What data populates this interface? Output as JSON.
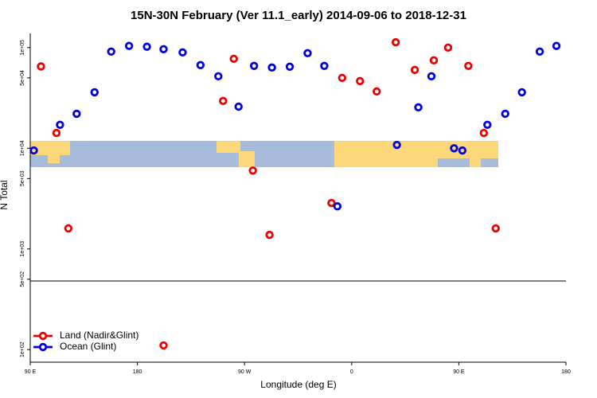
{
  "chart_data": {
    "type": "scatter",
    "title": "15N-30N February (Ver 11.1_early)   2014-09-06 to 2018-12-31",
    "xlabel": "Longitude (deg E)",
    "ylabel": "N Total",
    "xlim": [
      90,
      540
    ],
    "ylim": [
      75,
      160000
    ],
    "log_y": true,
    "legend": "lower left",
    "xticks": [
      {
        "value": 90,
        "label": "90 E"
      },
      {
        "value": 180,
        "label": "180"
      },
      {
        "value": 270,
        "label": "90 W"
      },
      {
        "value": 360,
        "label": "0"
      },
      {
        "value": 450,
        "label": "90 E"
      },
      {
        "value": 540,
        "label": "180"
      }
    ],
    "yticks": [
      {
        "value": 100,
        "label": "1e+02"
      },
      {
        "value": 500,
        "label": "5e+02"
      },
      {
        "value": 1000,
        "label": "1e+03"
      },
      {
        "value": 5000,
        "label": "5e+03"
      },
      {
        "value": 10000,
        "label": "1e+04"
      },
      {
        "value": 50000,
        "label": "5e+04"
      },
      {
        "value": 100000,
        "label": "1e+05"
      }
    ],
    "series": [
      {
        "name": "Land (Nadir&Glint)",
        "color": "#ee0000",
        "x": [
          99,
          112,
          122,
          202,
          252,
          261,
          277,
          291,
          343,
          352,
          367,
          381,
          397,
          413,
          429,
          441,
          458,
          471,
          481
        ],
        "values": [
          65000,
          14200,
          1600,
          110,
          29500,
          77400,
          6000,
          1380,
          2860,
          50000,
          46500,
          36700,
          113000,
          60000,
          74700,
          100000,
          65800,
          14200,
          1600
        ]
      },
      {
        "name": "Ocean (Glint)",
        "color": "#0000dd",
        "x": [
          93,
          115,
          129,
          144,
          158,
          173,
          188,
          202,
          218,
          233,
          248,
          265,
          278,
          293,
          308,
          323,
          337,
          348,
          398,
          416,
          427,
          446,
          453,
          474,
          489,
          503,
          518,
          532
        ],
        "values": [
          9500,
          17100,
          22000,
          36000,
          91300,
          104000,
          102000,
          96400,
          89600,
          67000,
          51900,
          25900,
          65800,
          63400,
          64600,
          88000,
          65800,
          2650,
          10800,
          25500,
          51900,
          10000,
          9500,
          17100,
          22000,
          36000,
          91300,
          104000
        ]
      }
    ]
  }
}
